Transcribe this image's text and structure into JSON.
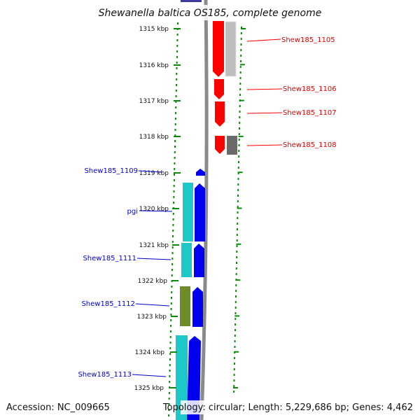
{
  "title": "Shewanella baltica OS185, complete genome",
  "colors": {
    "forward_strand": "#0000ee",
    "forward_alt": "#00c8c8",
    "forward_alt_olive": "#6e8c28",
    "reverse_strand": "#ff0000",
    "reverse_alt": "#b4b4b4",
    "reverse_dark": "#6e6e6e",
    "ruler": "#0a8c0a",
    "backbone": "#888888"
  },
  "ruler": {
    "unit": "kbp",
    "ticks": [
      {
        "label": "1315 kbp",
        "kbp": 1315
      },
      {
        "label": "1316 kbp",
        "kbp": 1316
      },
      {
        "label": "1317 kbp",
        "kbp": 1317
      },
      {
        "label": "1318 kbp",
        "kbp": 1318
      },
      {
        "label": "1319 kbp",
        "kbp": 1319
      },
      {
        "label": "1320 kbp",
        "kbp": 1320
      },
      {
        "label": "1321 kbp",
        "kbp": 1321
      },
      {
        "label": "1322 kbp",
        "kbp": 1322
      },
      {
        "label": "1323 kbp",
        "kbp": 1323
      },
      {
        "label": "1324 kbp",
        "kbp": 1324
      },
      {
        "label": "1325 kbp",
        "kbp": 1325
      }
    ]
  },
  "genes_reverse": [
    {
      "label": "Shew185_1105"
    },
    {
      "label": "Shew185_1106"
    },
    {
      "label": "Shew185_1107"
    },
    {
      "label": "Shew185_1108"
    }
  ],
  "genes_forward": [
    {
      "label": "Shew185_1109"
    },
    {
      "label": "pgi"
    },
    {
      "label": "Shew185_1111"
    },
    {
      "label": "Shew185_1112"
    },
    {
      "label": "Shew185_1113"
    }
  ],
  "footer": {
    "accession": "Accession: NC_009665",
    "summary": "Topology: circular; Length: 5,229,686 bp; Genes: 4,462"
  }
}
